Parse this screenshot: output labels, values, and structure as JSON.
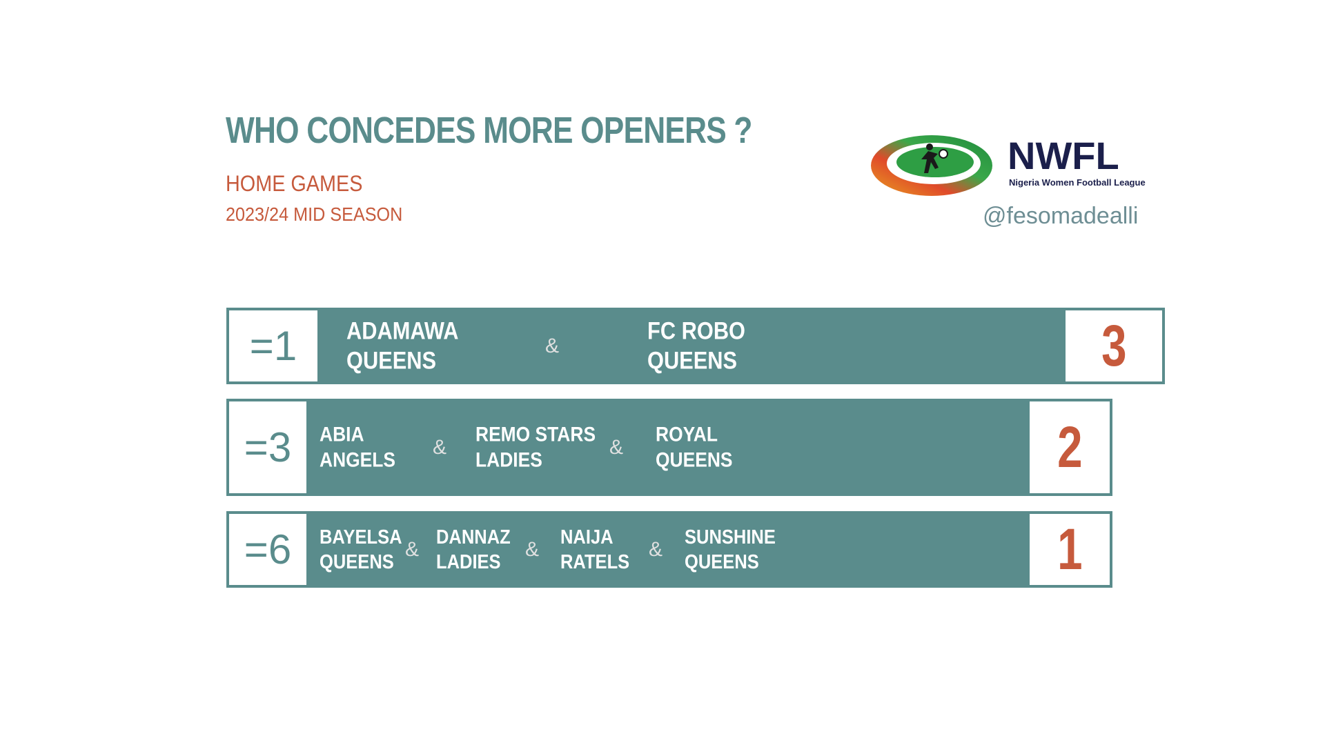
{
  "header": {
    "title": "WHO CONCEDES MORE OPENERS ?",
    "subtitle": "HOME GAMES",
    "season": "2023/24 MID SEASON"
  },
  "logo": {
    "brand": "NWFL",
    "tagline": "Nigeria Women Football League",
    "handle": "@fesomadealli"
  },
  "separator": "&",
  "rows": [
    {
      "rank": "=1",
      "count": "3",
      "teams": [
        {
          "line1": "ADAMAWA",
          "line2": "QUEENS"
        },
        {
          "line1": "FC ROBO",
          "line2": "QUEENS"
        }
      ]
    },
    {
      "rank": "=3",
      "count": "2",
      "teams": [
        {
          "line1": "ABIA",
          "line2": "ANGELS"
        },
        {
          "line1": "REMO STARS",
          "line2": "LADIES"
        },
        {
          "line1": "ROYAL",
          "line2": "QUEENS"
        }
      ]
    },
    {
      "rank": "=6",
      "count": "1",
      "teams": [
        {
          "line1": "BAYELSA",
          "line2": "QUEENS"
        },
        {
          "line1": "DANNAZ",
          "line2": "LADIES"
        },
        {
          "line1": "NAIJA",
          "line2": "RATELS"
        },
        {
          "line1": "SUNSHINE",
          "line2": "QUEENS"
        }
      ]
    }
  ]
}
